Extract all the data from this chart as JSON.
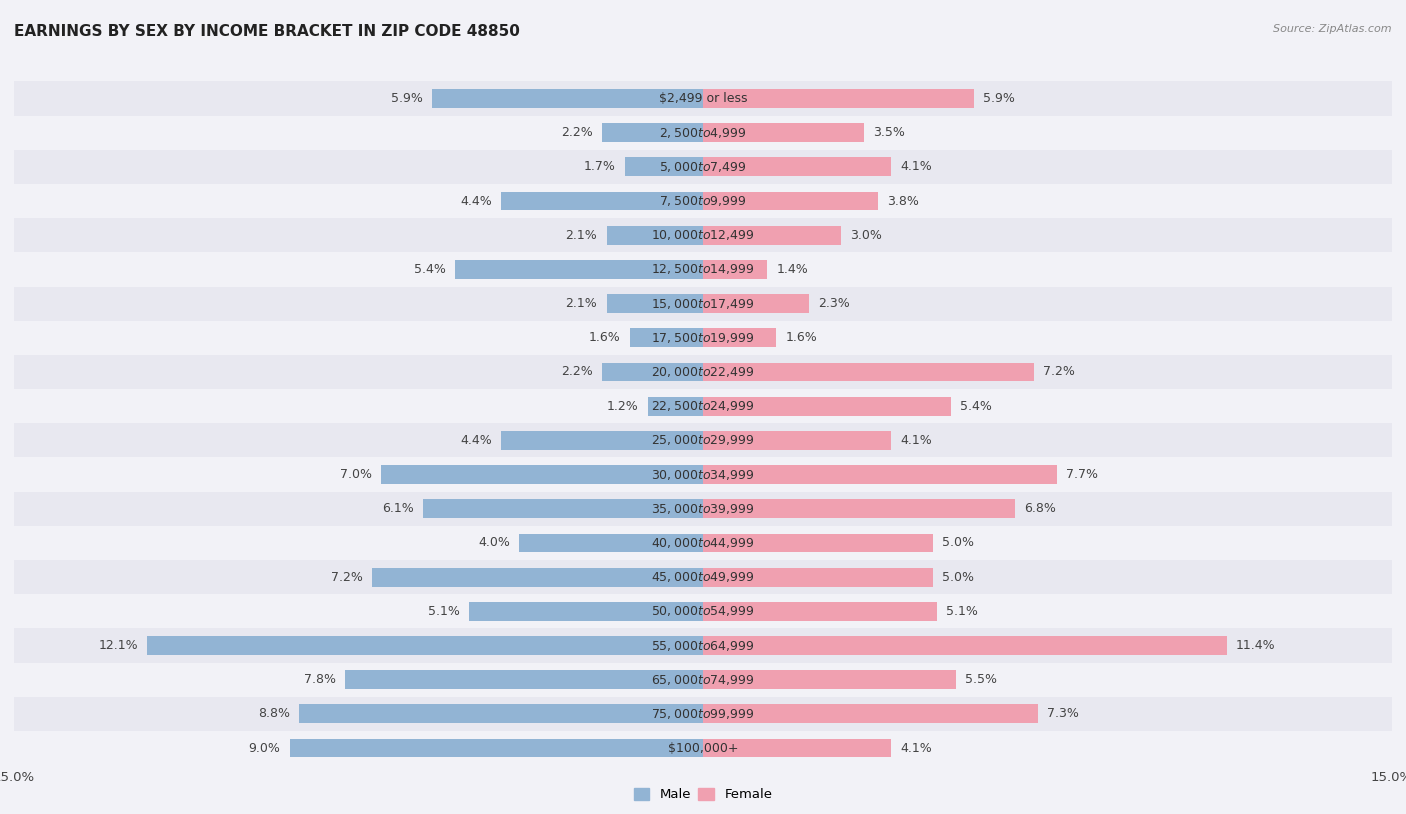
{
  "title": "EARNINGS BY SEX BY INCOME BRACKET IN ZIP CODE 48850",
  "source": "Source: ZipAtlas.com",
  "categories": [
    "$2,499 or less",
    "$2,500 to $4,999",
    "$5,000 to $7,499",
    "$7,500 to $9,999",
    "$10,000 to $12,499",
    "$12,500 to $14,999",
    "$15,000 to $17,499",
    "$17,500 to $19,999",
    "$20,000 to $22,499",
    "$22,500 to $24,999",
    "$25,000 to $29,999",
    "$30,000 to $34,999",
    "$35,000 to $39,999",
    "$40,000 to $44,999",
    "$45,000 to $49,999",
    "$50,000 to $54,999",
    "$55,000 to $64,999",
    "$65,000 to $74,999",
    "$75,000 to $99,999",
    "$100,000+"
  ],
  "male_values": [
    5.9,
    2.2,
    1.7,
    4.4,
    2.1,
    5.4,
    2.1,
    1.6,
    2.2,
    1.2,
    4.4,
    7.0,
    6.1,
    4.0,
    7.2,
    5.1,
    12.1,
    7.8,
    8.8,
    9.0
  ],
  "female_values": [
    5.9,
    3.5,
    4.1,
    3.8,
    3.0,
    1.4,
    2.3,
    1.6,
    7.2,
    5.4,
    4.1,
    7.7,
    6.8,
    5.0,
    5.0,
    5.1,
    11.4,
    5.5,
    7.3,
    4.1
  ],
  "male_color": "#92b4d4",
  "female_color": "#f0a0b0",
  "bg_color": "#f2f2f7",
  "row_even_color": "#e8e8f0",
  "title_fontsize": 11,
  "label_fontsize": 9,
  "axis_label_fontsize": 9.5,
  "xlim": 15.0,
  "legend_male": "Male",
  "legend_female": "Female"
}
